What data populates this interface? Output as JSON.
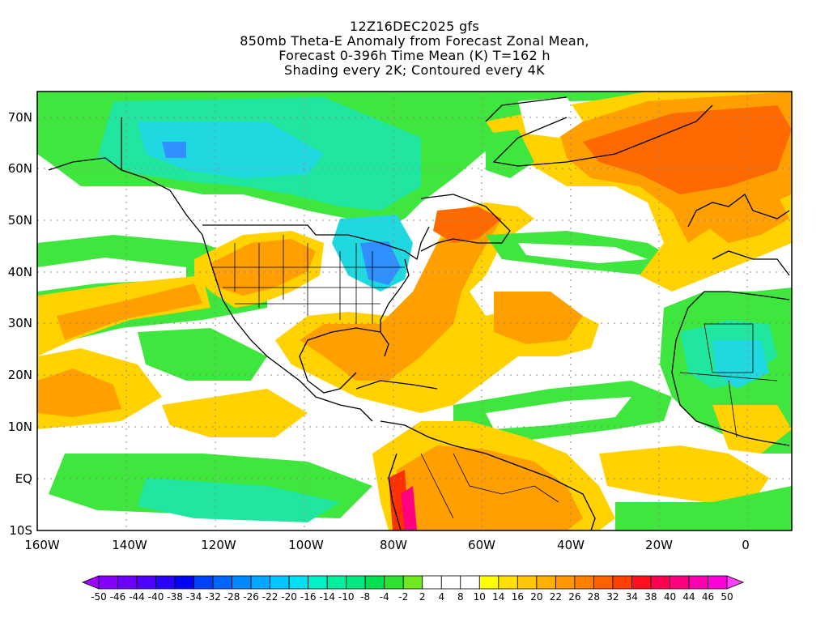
{
  "title": {
    "line1": "12Z16DEC2025 gfs",
    "line2": "850mb Theta-E Anomaly from Forecast Zonal Mean,",
    "line3": "Forecast 0-396h Time Mean (K) T=162 h",
    "line4": "Shading every 2K; Contoured every 4K"
  },
  "map": {
    "lon_range": [
      -160,
      10
    ],
    "lat_range": [
      -10,
      75
    ],
    "lat_ticks": [
      "70N",
      "60N",
      "50N",
      "40N",
      "30N",
      "20N",
      "10N",
      "EQ",
      "10S"
    ],
    "lon_ticks": [
      "160W",
      "140W",
      "120W",
      "100W",
      "80W",
      "60W",
      "40W",
      "20W",
      "0"
    ],
    "grid": "dotted"
  },
  "colorbar": {
    "labels": [
      "-50",
      "-46",
      "-44",
      "-40",
      "-38",
      "-34",
      "-32",
      "-28",
      "-26",
      "-22",
      "-20",
      "-16",
      "-14",
      "-10",
      "-8",
      "-4",
      "-2",
      "2",
      "4",
      "8",
      "10",
      "14",
      "16",
      "20",
      "22",
      "26",
      "28",
      "32",
      "34",
      "38",
      "40",
      "44",
      "46",
      "50"
    ],
    "colors": [
      "#a000ff",
      "#8400ff",
      "#6a00ff",
      "#5000ff",
      "#2a00ff",
      "#0000ff",
      "#0040ff",
      "#0066ff",
      "#0088ff",
      "#00a8ff",
      "#00c8ff",
      "#00e0f0",
      "#00f0c8",
      "#00f0a0",
      "#00e880",
      "#00e050",
      "#30e030",
      "#70e820",
      "#ffffff",
      "#ffffff",
      "#ffffff",
      "#ffff00",
      "#ffe000",
      "#ffc800",
      "#ffb000",
      "#ff9800",
      "#ff8000",
      "#ff6000",
      "#ff4000",
      "#ff1020",
      "#ff0050",
      "#ff0080",
      "#ff00b0",
      "#ff00d8",
      "#ff40ff"
    ]
  },
  "palette": {
    "ocean_white": "#ffffff",
    "green": "#3ee63e",
    "teal": "#20e6a0",
    "cyan": "#20d8e0",
    "blue": "#3090ff",
    "yellow": "#ffd200",
    "orange": "#ffa000",
    "orange_red": "#ff6a00",
    "red": "#ff3000"
  }
}
